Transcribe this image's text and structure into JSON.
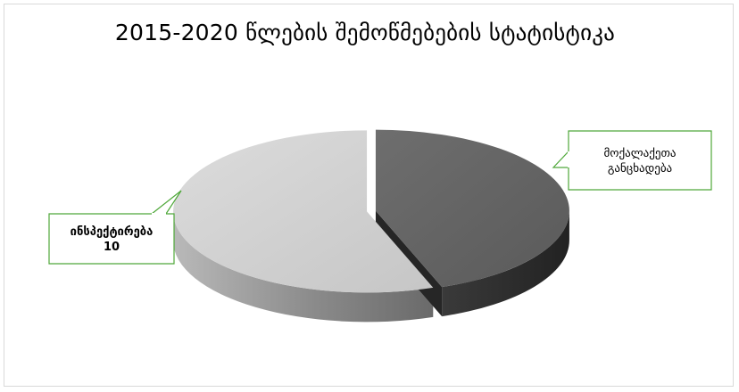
{
  "chart_data": {
    "type": "pie",
    "title": "2015-2020 წლების შემოწმებების სტატისტიკა",
    "style": "3d-exploded-gray",
    "legend": "none",
    "slices": [
      {
        "name": "მოქალაქეთა განცხადება",
        "label_lines": [
          "მოქალაქეთა",
          "განცხადება"
        ],
        "value_label": "",
        "value": 8,
        "color": "#707070",
        "side_color": "#2f2f2f"
      },
      {
        "name": "ინსპექტირება",
        "label_lines": [
          "ინსპექტირება"
        ],
        "value_label": "10",
        "value": 10,
        "color": "#d4d4d4",
        "side_color": "#8a8a8a"
      }
    ],
    "callout_border_color": "#4fa83a"
  }
}
